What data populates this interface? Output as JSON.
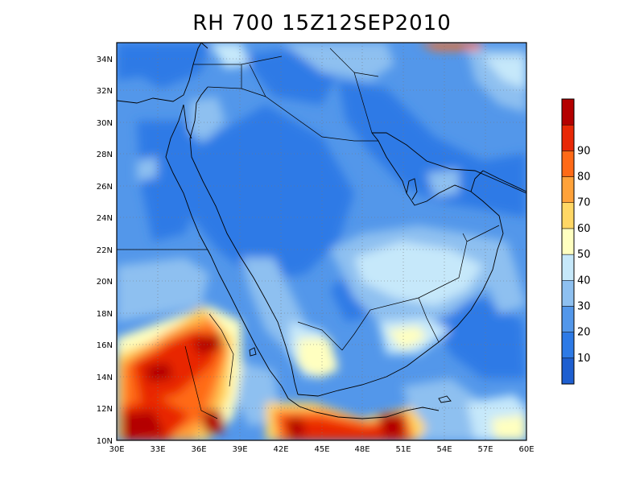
{
  "title": "RH 700 15Z12SEP2010",
  "map": {
    "lon_range": [
      30,
      60
    ],
    "lat_range": [
      10,
      35
    ],
    "lon_ticks": [
      "30E",
      "33E",
      "36E",
      "39E",
      "42E",
      "45E",
      "48E",
      "51E",
      "54E",
      "57E",
      "60E"
    ],
    "lat_ticks": [
      "10N",
      "12N",
      "14N",
      "16N",
      "18N",
      "20N",
      "22N",
      "24N",
      "26N",
      "28N",
      "30N",
      "32N",
      "34N"
    ]
  },
  "colorbar": {
    "labels": [
      "10",
      "20",
      "30",
      "40",
      "50",
      "60",
      "70",
      "80",
      "90"
    ],
    "colors": [
      "#1e5fd0",
      "#2d7ae6",
      "#5397ea",
      "#8ec0f0",
      "#c6e8fa",
      "#ffffc0",
      "#ffd765",
      "#ffa23a",
      "#ff6a17",
      "#e82806",
      "#b40000"
    ]
  }
}
